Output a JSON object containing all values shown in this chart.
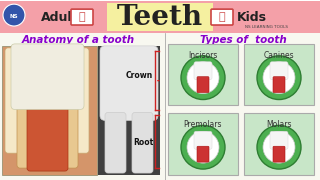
{
  "bg_color": "#ffffff",
  "header_bg": "#f4a0a8",
  "header_yellow": "#f5f0a0",
  "title_text": "Teeth",
  "adult_text": "Adult",
  "kids_text": "Kids",
  "ns_text": "NS LEARNING TOOLS",
  "anatomy_title": "Anatomy of a tooth",
  "types_title": "Types of  tooth",
  "crown_label": "Crown",
  "root_label": "Root",
  "types": [
    "Incisors",
    "Canines",
    "Premolars",
    "Molars"
  ],
  "left_panel_bg": "#e8f5e8",
  "right_panel_bg": "#e8f5e8",
  "green_circle": "#4caf50",
  "dark_green": "#2e7d32",
  "tooth_white": "#f0f0f0",
  "tooth_red": "#cc3333",
  "box_bg": "#c8e6c8",
  "box_border": "#999999"
}
